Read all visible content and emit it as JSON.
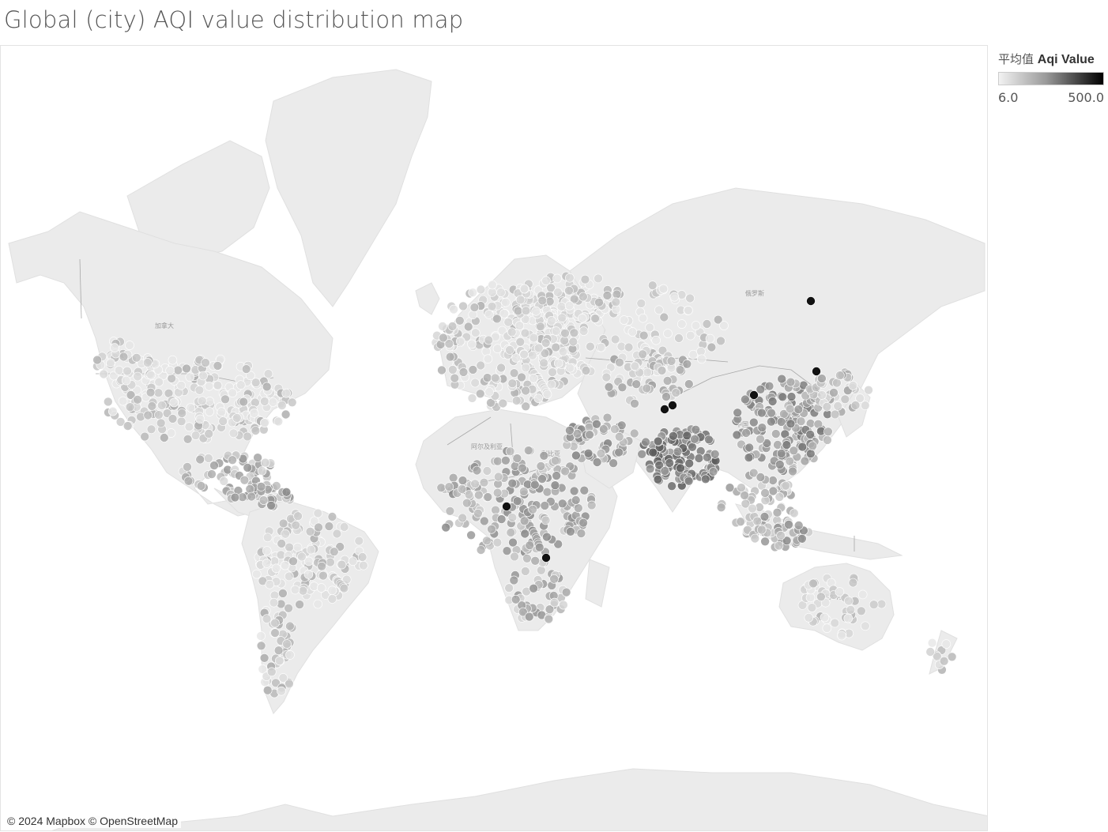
{
  "title": "Global (city) AQI value distribution map",
  "legend": {
    "agg_label": "平均值",
    "field_label": "Aqi Value",
    "min_label": "6.0",
    "max_label": "500.0",
    "min": 6.0,
    "max": 500.0,
    "color_low": "#f2f2f2",
    "color_high": "#000000"
  },
  "attribution": "© 2024 Mapbox © OpenStreetMap",
  "map_labels": {
    "canada": "加拿大",
    "russia": "俄罗斯",
    "china": "中国",
    "algeria": "阿尔及利亚",
    "australia": "澳大利亚",
    "usa": "美国",
    "libya": "利比亚"
  },
  "colors": {
    "land": "#ebebeb",
    "water": "#ffffff",
    "border": "#a8a8a8"
  }
}
